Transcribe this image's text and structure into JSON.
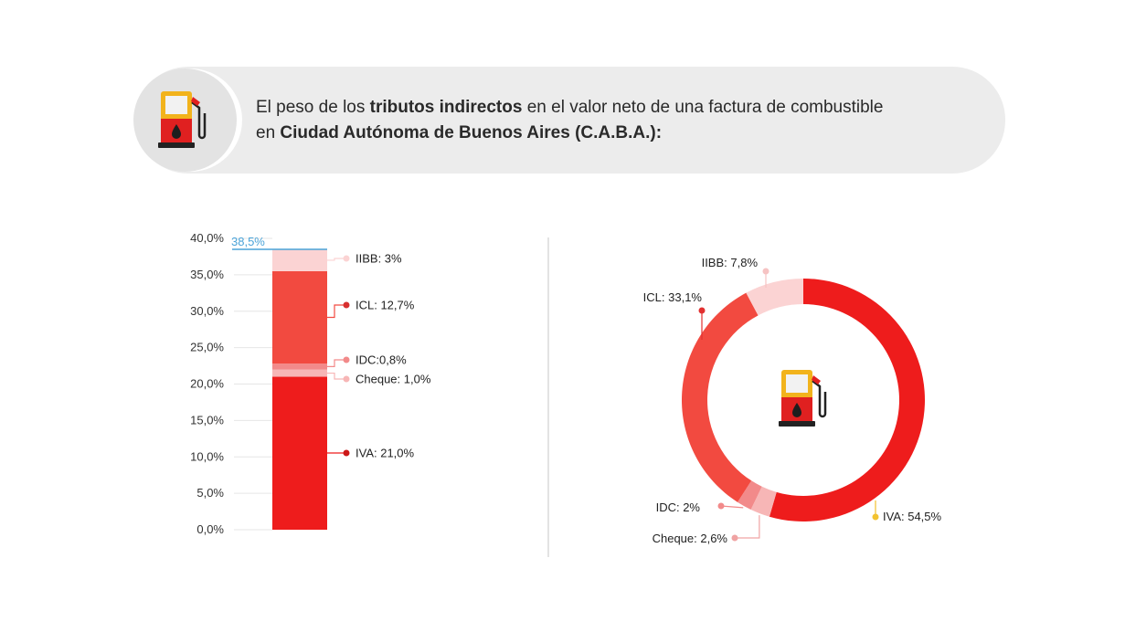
{
  "header": {
    "line1_pre": "El peso de los ",
    "line1_bold": "tributos indirectos",
    "line1_post": " en el valor neto de una factura de combustible",
    "line2_pre": "en ",
    "line2_bold": "Ciudad Autónoma de Buenos Aires (C.A.B.A.):",
    "icon": "fuel-pump-icon"
  },
  "chart_data": [
    {
      "type": "bar",
      "stacked": true,
      "ylim": [
        0,
        40
      ],
      "yticks": [
        "0,0%",
        "5,0%",
        "10,0%",
        "15,0%",
        "20,0%",
        "25,0%",
        "30,0%",
        "35,0%",
        "40,0%"
      ],
      "total_label": "38,5%",
      "total": 38.5,
      "series": [
        {
          "name": "IVA",
          "label": "IVA: 21,0%",
          "value": 21.0,
          "color": "#ee1c1c"
        },
        {
          "name": "Cheque",
          "label": "Cheque: 1,0%",
          "value": 1.0,
          "color": "#f7b6b6"
        },
        {
          "name": "IDC",
          "label": "IDC:0,8%",
          "value": 0.8,
          "color": "#f28a8a"
        },
        {
          "name": "ICL",
          "label": "ICL: 12,7%",
          "value": 12.7,
          "color": "#f24a40"
        },
        {
          "name": "IIBB",
          "label": "IIBB: 3%",
          "value": 3.0,
          "color": "#fbd3d3"
        }
      ]
    },
    {
      "type": "pie",
      "donut": true,
      "slices": [
        {
          "name": "IVA",
          "label": "IVA: 54,5%",
          "value": 54.5,
          "color": "#ee1c1c",
          "marker": "#f2c230"
        },
        {
          "name": "Cheque",
          "label": "Cheque: 2,6%",
          "value": 2.6,
          "color": "#f7b6b6",
          "marker": "#f0a3a3"
        },
        {
          "name": "IDC",
          "label": "IDC: 2%",
          "value": 2.0,
          "color": "#f28a8a",
          "marker": "#f28a8a"
        },
        {
          "name": "ICL",
          "label": "ICL: 33,1%",
          "value": 33.1,
          "color": "#f24a40",
          "marker": "#e23030"
        },
        {
          "name": "IIBB",
          "label": "IIBB: 7,8%",
          "value": 7.8,
          "color": "#fbd3d3",
          "marker": "#f6c3c3"
        }
      ]
    }
  ]
}
